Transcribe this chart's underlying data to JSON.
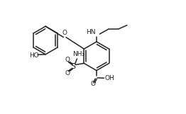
{
  "bg_color": "#ffffff",
  "line_color": "#222222",
  "line_width": 1.1,
  "font_size": 6.5,
  "fig_width": 2.62,
  "fig_height": 1.61,
  "dpi": 100,
  "xlim": [
    0,
    10.5
  ],
  "ylim": [
    0,
    6.5
  ]
}
